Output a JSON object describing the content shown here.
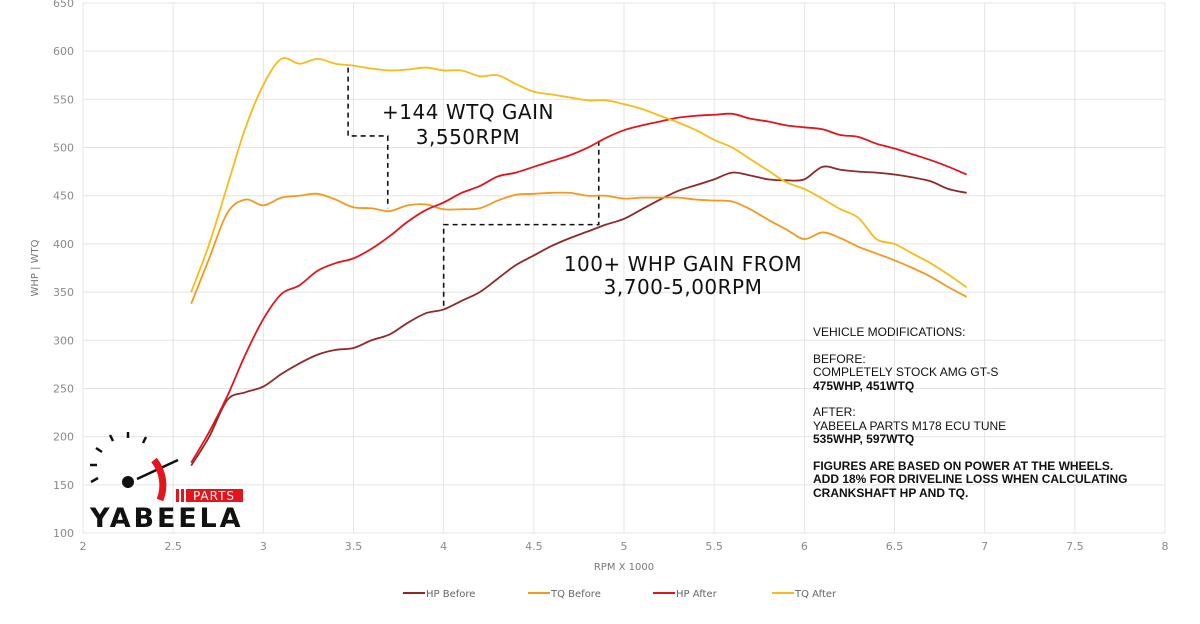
{
  "chart_data": {
    "type": "line",
    "title": "",
    "xlabel": "RPM X 1000",
    "ylabel": "WHP | WTQ",
    "xlim": [
      2,
      8
    ],
    "ylim": [
      100,
      650
    ],
    "xticks": [
      "2",
      "2.5",
      "3",
      "3.5",
      "4",
      "4.5",
      "5",
      "5.5",
      "6",
      "6.5",
      "7",
      "7.5",
      "8"
    ],
    "yticks": [
      "100",
      "150",
      "200",
      "250",
      "300",
      "350",
      "400",
      "450",
      "500",
      "550",
      "600",
      "650"
    ],
    "grid": true,
    "legend_position": "bottom",
    "x": [
      2.6,
      2.7,
      2.8,
      2.9,
      3.0,
      3.1,
      3.2,
      3.3,
      3.4,
      3.5,
      3.6,
      3.7,
      3.8,
      3.9,
      4.0,
      4.1,
      4.2,
      4.3,
      4.4,
      4.5,
      4.6,
      4.7,
      4.8,
      4.9,
      5.0,
      5.1,
      5.2,
      5.3,
      5.4,
      5.5,
      5.6,
      5.7,
      5.8,
      5.9,
      6.0,
      6.1,
      6.2,
      6.3,
      6.4,
      6.5,
      6.6,
      6.7,
      6.8,
      6.9
    ],
    "series": [
      {
        "name": "HP Before",
        "color": "#8e2a2a",
        "values": [
          170,
          200,
          238,
          246,
          252,
          265,
          276,
          285,
          290,
          292,
          300,
          306,
          318,
          328,
          332,
          341,
          350,
          364,
          378,
          388,
          398,
          406,
          413,
          420,
          426,
          436,
          446,
          455,
          461,
          467,
          474,
          471,
          467,
          466,
          467,
          480,
          477,
          475,
          474,
          472,
          469,
          465,
          457,
          453
        ]
      },
      {
        "name": "TQ Before",
        "color": "#f39a1e",
        "values": [
          338,
          385,
          432,
          446,
          440,
          448,
          450,
          452,
          446,
          438,
          437,
          434,
          440,
          441,
          436,
          436,
          437,
          445,
          451,
          452,
          453,
          453,
          450,
          450,
          447,
          448,
          448,
          448,
          446,
          445,
          444,
          436,
          425,
          415,
          405,
          412,
          406,
          397,
          390,
          383,
          375,
          366,
          355,
          345
        ]
      },
      {
        "name": "HP After",
        "color": "#e3141b",
        "values": [
          173,
          205,
          242,
          285,
          322,
          348,
          357,
          372,
          380,
          385,
          395,
          408,
          423,
          435,
          443,
          453,
          460,
          470,
          474,
          480,
          486,
          492,
          500,
          510,
          518,
          523,
          527,
          531,
          533,
          534,
          535,
          530,
          527,
          523,
          521,
          519,
          513,
          511,
          504,
          499,
          493,
          487,
          480,
          472
        ]
      },
      {
        "name": "TQ After",
        "color": "#f7bb1a",
        "values": [
          350,
          400,
          460,
          520,
          565,
          592,
          587,
          592,
          587,
          585,
          582,
          580,
          581,
          583,
          580,
          580,
          574,
          575,
          566,
          558,
          555,
          552,
          549,
          549,
          545,
          540,
          533,
          526,
          518,
          508,
          500,
          488,
          476,
          464,
          457,
          447,
          436,
          427,
          405,
          400,
          390,
          380,
          368,
          355
        ]
      }
    ],
    "annotations": [
      {
        "lines": [
          "+144 WTQ GAIN",
          "3,550RPM"
        ]
      },
      {
        "lines": [
          "100+ WHP GAIN FROM",
          "3,700-5,00RPM"
        ]
      }
    ]
  },
  "modifications": {
    "heading": "VEHICLE MODIFICATIONS:",
    "before_label": "BEFORE:",
    "before_desc": "COMPLETELY STOCK AMG GT-S",
    "before_figures": "475WHP, 451WTQ",
    "after_label": "AFTER:",
    "after_desc": "YABEELA PARTS M178 ECU TUNE",
    "after_figures": "535WHP, 597WTQ",
    "note": [
      "FIGURES ARE BASED ON POWER AT THE WHEELS.",
      "ADD 18% FOR DRIVELINE LOSS WHEN CALCULATING",
      "CRANKSHAFT HP AND TQ."
    ]
  },
  "logo": {
    "brand": "YABEELA",
    "sub": "PARTS",
    "accent": "#e3141b"
  }
}
